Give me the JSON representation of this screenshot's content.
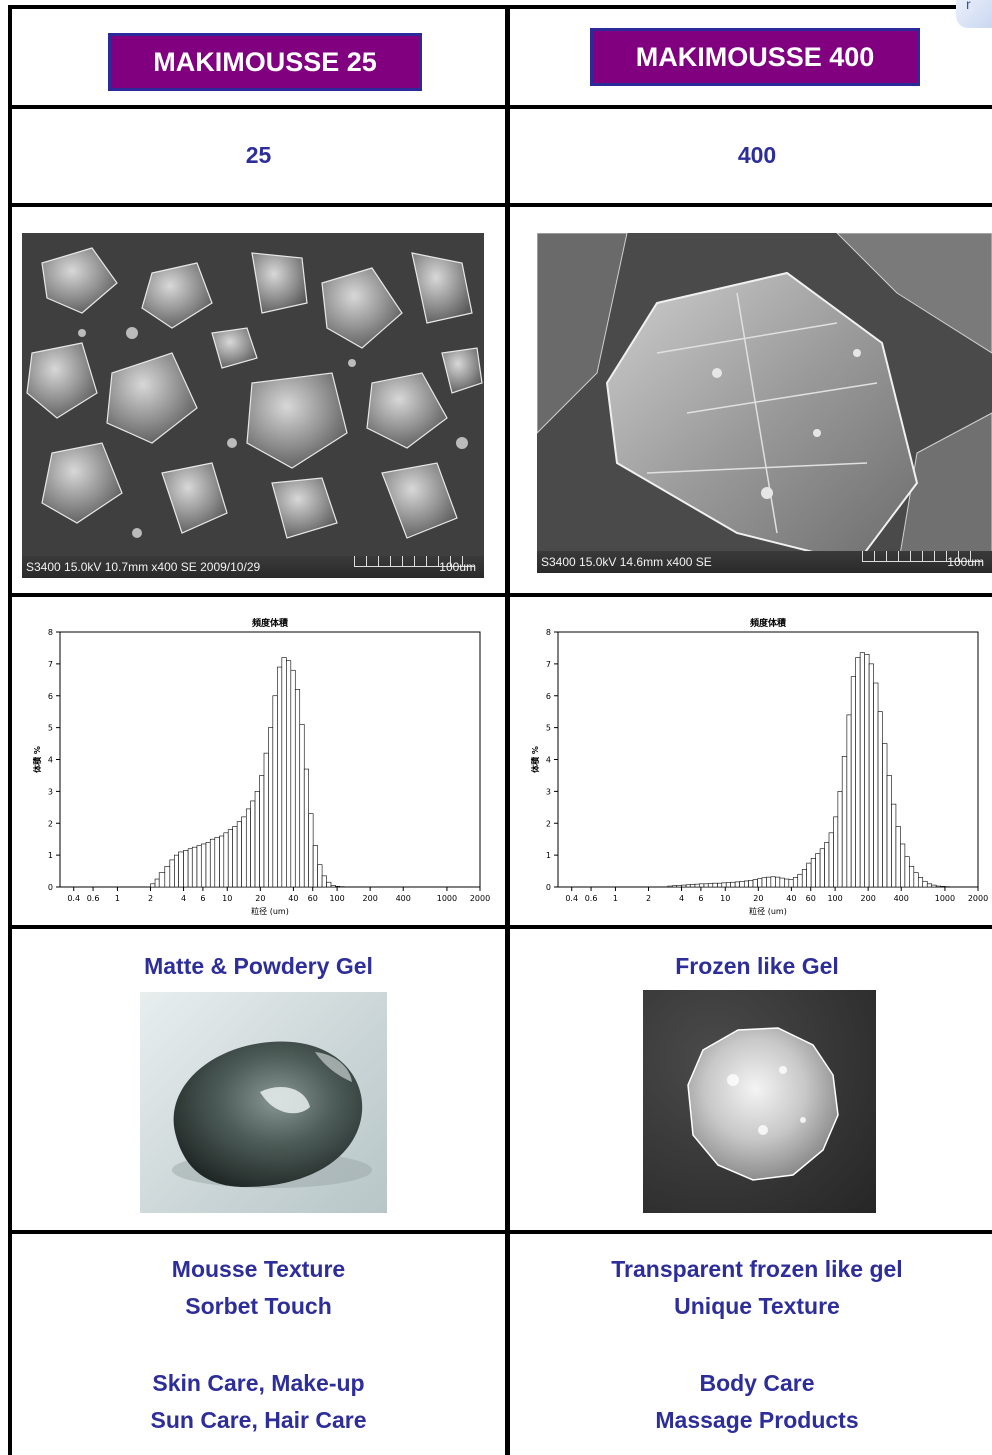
{
  "left": {
    "title": "MAKIMOUSSE 25",
    "number": "25",
    "sem_label": "S3400 15.0kV 10.7mm x400 SE  2009/10/29",
    "sem_scale": "100um",
    "texture_title": "Matte & Powdery Gel",
    "desc_lines": [
      "Mousse Texture",
      "Sorbet Touch"
    ],
    "use_lines": [
      "Skin Care, Make-up",
      "Sun Care, Hair Care"
    ]
  },
  "right": {
    "title": "MAKIMOUSSE 400",
    "number": "400",
    "sem_label": "S3400 15.0kV 14.6mm x400 SE",
    "sem_scale": "100um",
    "texture_title": "Frozen like Gel",
    "desc_lines": [
      "Transparent frozen like gel",
      "Unique Texture"
    ],
    "use_lines": [
      "Body Care",
      "Massage Products"
    ]
  },
  "chart_data": [
    {
      "type": "bar",
      "title": "頻度体積",
      "xlabel": "粒径 (um)",
      "ylabel": "体積 %",
      "x_scale": "log",
      "xlim": [
        0.3,
        2000
      ],
      "ylim": [
        0,
        8
      ],
      "yticks": [
        "0",
        "1",
        "2",
        "3",
        "4",
        "5",
        "6",
        "7",
        "8"
      ],
      "xticks": [
        "0.4",
        "0.6",
        "1",
        "2",
        "4",
        "6",
        "10",
        "20",
        "40",
        "60",
        "100",
        "200",
        "400",
        "1000",
        "2000"
      ],
      "x": [
        2,
        2.2,
        2.4,
        2.7,
        3,
        3.3,
        3.6,
        4,
        4.4,
        4.8,
        5.3,
        5.8,
        6.4,
        7,
        7.7,
        8.5,
        9.3,
        10.2,
        11.2,
        12.3,
        13.5,
        14.9,
        16.3,
        17.9,
        19.7,
        21.6,
        23.7,
        26,
        28.6,
        31.4,
        34.5,
        37.9,
        41.6,
        45.7,
        50.2,
        55.1,
        60.5,
        66.5,
        73,
        80.2,
        88,
        96.7,
        106
      ],
      "values": [
        0.1,
        0.25,
        0.45,
        0.65,
        0.85,
        1.0,
        1.1,
        1.15,
        1.2,
        1.25,
        1.3,
        1.35,
        1.4,
        1.5,
        1.55,
        1.6,
        1.7,
        1.8,
        1.9,
        2.05,
        2.2,
        2.45,
        2.7,
        3.0,
        3.5,
        4.2,
        5.0,
        6.0,
        6.9,
        7.2,
        7.1,
        6.8,
        6.2,
        5.1,
        3.7,
        2.3,
        1.3,
        0.7,
        0.35,
        0.15,
        0.05,
        0.02,
        0.01
      ]
    },
    {
      "type": "bar",
      "title": "頻度体積",
      "xlabel": "粒径 (um)",
      "ylabel": "体積 %",
      "x_scale": "log",
      "xlim": [
        0.3,
        2000
      ],
      "ylim": [
        0,
        8
      ],
      "yticks": [
        "0",
        "1",
        "2",
        "3",
        "4",
        "5",
        "6",
        "7",
        "8"
      ],
      "xticks": [
        "0.4",
        "0.6",
        "1",
        "2",
        "4",
        "6",
        "10",
        "20",
        "40",
        "60",
        "100",
        "200",
        "400",
        "1000",
        "2000"
      ],
      "x": [
        3,
        3.3,
        3.6,
        4,
        4.4,
        4.8,
        5.3,
        5.8,
        6.4,
        7,
        7.7,
        8.5,
        9.3,
        10.2,
        11.2,
        12.3,
        13.5,
        14.9,
        16.3,
        17.9,
        19.7,
        21.6,
        23.7,
        26,
        28.6,
        31.4,
        34.5,
        37.9,
        41.6,
        45.7,
        50.2,
        55.1,
        60.5,
        66.5,
        73,
        80.2,
        88,
        96.7,
        106,
        116,
        128,
        140,
        154,
        169,
        186,
        204,
        224,
        246,
        270,
        297,
        326,
        358,
        393,
        432,
        474,
        521,
        572,
        628,
        690,
        758,
        832,
        914,
        1004,
        1103
      ],
      "values": [
        0.03,
        0.04,
        0.05,
        0.06,
        0.07,
        0.08,
        0.09,
        0.1,
        0.1,
        0.11,
        0.12,
        0.12,
        0.13,
        0.14,
        0.15,
        0.16,
        0.17,
        0.19,
        0.21,
        0.23,
        0.26,
        0.29,
        0.31,
        0.32,
        0.31,
        0.28,
        0.25,
        0.24,
        0.3,
        0.4,
        0.55,
        0.75,
        0.9,
        1.05,
        1.2,
        1.4,
        1.7,
        2.2,
        3.0,
        4.1,
        5.4,
        6.6,
        7.2,
        7.35,
        7.3,
        7.0,
        6.4,
        5.5,
        4.5,
        3.5,
        2.6,
        1.9,
        1.35,
        0.95,
        0.65,
        0.45,
        0.3,
        0.18,
        0.1,
        0.06,
        0.03,
        0.02,
        0.01,
        0.0
      ]
    }
  ]
}
